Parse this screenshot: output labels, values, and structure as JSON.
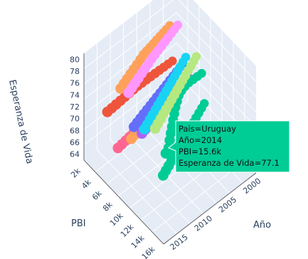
{
  "chart_data": {
    "type": "scatter3d",
    "x_axis": {
      "title": "Año",
      "ticks": [
        "2000",
        "2005",
        "2010",
        "2015"
      ],
      "range": [
        1997,
        2016
      ]
    },
    "y_axis": {
      "title": "PBI",
      "ticks": [
        "2k",
        "4k",
        "6k",
        "8k",
        "10k",
        "12k",
        "14k",
        "16k"
      ],
      "range": [
        1500,
        16500
      ]
    },
    "z_axis": {
      "title": "Esperanza de Vida",
      "ticks": [
        "64",
        "66",
        "68",
        "70",
        "72",
        "74",
        "76",
        "78",
        "80"
      ],
      "range": [
        63,
        81
      ]
    },
    "series": [
      {
        "color": "#ef553b",
        "x": [
          2000,
          2001,
          2002,
          2003,
          2004,
          2005,
          2006,
          2007,
          2008,
          2009,
          2010,
          2011,
          2012,
          2013,
          2014,
          2015
        ],
        "y": [
          3500,
          3600,
          3700,
          3800,
          3900,
          4000,
          4100,
          4200,
          4300,
          4400,
          4500,
          4600,
          4700,
          4800,
          4900,
          5000
        ],
        "z": [
          71.5,
          71.7,
          71.9,
          72.1,
          72.3,
          72.5,
          72.7,
          72.9,
          73.1,
          73.2,
          73.3,
          73.4,
          73.5,
          73.6,
          73.7,
          73.8
        ]
      },
      {
        "color": "#fe6692",
        "x": [
          2000,
          2001,
          2002,
          2003,
          2004,
          2005,
          2006,
          2007,
          2008,
          2009,
          2010,
          2011,
          2012,
          2013,
          2014,
          2015
        ],
        "y": [
          4000,
          4200,
          4400,
          4600,
          4800,
          5000,
          5200,
          5400,
          5600,
          5800,
          6000,
          6200,
          6400,
          6600,
          6800,
          7000
        ],
        "z": [
          65.5,
          65.9,
          66.3,
          66.7,
          67.0,
          67.3,
          67.6,
          67.9,
          68.2,
          68.4,
          68.6,
          68.8,
          69.0,
          69.2,
          69.4,
          69.6
        ]
      },
      {
        "color": "#ffa15a",
        "x": [
          2000,
          2001,
          2002,
          2003,
          2004,
          2005,
          2006,
          2007,
          2008,
          2009,
          2010,
          2011,
          2012,
          2013,
          2014,
          2015
        ],
        "y": [
          5000,
          5300,
          5600,
          5900,
          6200,
          6500,
          6800,
          7100,
          7400,
          7700,
          8000,
          8300,
          8600,
          8900,
          9200,
          9500
        ],
        "z": [
          69.0,
          69.3,
          69.6,
          69.9,
          70.2,
          70.5,
          70.8,
          71.1,
          71.4,
          71.7,
          72.0,
          72.3,
          72.6,
          72.9,
          73.2,
          73.5
        ]
      },
      {
        "color": "#636efa",
        "x": [
          2000,
          2001,
          2002,
          2003,
          2004,
          2005,
          2006,
          2007,
          2008,
          2009,
          2010,
          2011,
          2012,
          2013,
          2014,
          2015
        ],
        "y": [
          5500,
          5800,
          6100,
          6400,
          6700,
          7000,
          7300,
          7600,
          7900,
          8200,
          8500,
          8800,
          9100,
          9400,
          9700,
          10000
        ],
        "z": [
          73.0,
          73.2,
          73.4,
          73.6,
          73.8,
          74.0,
          74.2,
          74.4,
          74.6,
          74.8,
          75.0,
          75.2,
          75.4,
          75.6,
          75.8,
          76.0
        ]
      },
      {
        "color": "#ab63fa",
        "x": [
          2000,
          2001,
          2002,
          2003,
          2004,
          2005,
          2006,
          2007,
          2008,
          2009,
          2010,
          2011,
          2012,
          2013,
          2014,
          2015
        ],
        "y": [
          7000,
          7300,
          7600,
          7900,
          8200,
          8500,
          8800,
          9100,
          9400,
          9700,
          10000,
          10300,
          10600,
          10900,
          11200,
          11500
        ],
        "z": [
          71.8,
          72.1,
          72.4,
          72.7,
          73.0,
          73.3,
          73.6,
          73.9,
          74.2,
          74.5,
          74.8,
          75.1,
          75.4,
          75.7,
          76.0,
          76.3
        ]
      },
      {
        "color": "#19d3f3",
        "x": [
          2000,
          2001,
          2002,
          2003,
          2004,
          2005,
          2006,
          2007,
          2008,
          2009,
          2010,
          2011,
          2012,
          2013,
          2014,
          2015
        ],
        "y": [
          6000,
          6400,
          6800,
          7200,
          7600,
          8000,
          8400,
          8800,
          9200,
          9600,
          10000,
          10400,
          10800,
          11200,
          11600,
          12000
        ],
        "z": [
          74.5,
          74.7,
          74.9,
          75.1,
          75.3,
          75.5,
          75.7,
          75.9,
          76.1,
          76.3,
          76.5,
          76.7,
          76.9,
          77.1,
          77.3,
          77.5
        ]
      },
      {
        "color": "#b6e880",
        "x": [
          2000,
          2001,
          2002,
          2003,
          2004,
          2005,
          2006,
          2007,
          2008,
          2009,
          2010,
          2011,
          2012,
          2013,
          2014,
          2015
        ],
        "y": [
          8000,
          8400,
          8800,
          9200,
          9600,
          10000,
          10400,
          10800,
          11200,
          11600,
          12000,
          12400,
          12800,
          13200,
          13600,
          14000
        ],
        "z": [
          76.5,
          76.7,
          76.9,
          77.1,
          77.3,
          77.5,
          77.7,
          77.9,
          78.1,
          78.3,
          78.5,
          78.7,
          78.9,
          79.1,
          79.3,
          79.5
        ]
      },
      {
        "color": "#ffa15a",
        "x": [
          2000,
          2001,
          2002,
          2003,
          2004,
          2005,
          2006,
          2007,
          2008,
          2009,
          2010,
          2011,
          2012,
          2013,
          2014,
          2015
        ],
        "y": [
          3000,
          3300,
          3600,
          3900,
          4200,
          4500,
          4800,
          5100,
          5400,
          5700,
          6000,
          6300,
          6600,
          6900,
          7200,
          7500
        ],
        "z": [
          77.0,
          77.3,
          77.6,
          77.9,
          78.2,
          78.5,
          78.8,
          79.1,
          79.4,
          79.5,
          79.6,
          79.7,
          79.8,
          79.9,
          80.0,
          80.1
        ]
      },
      {
        "color": "#ff97ff",
        "x": [
          2000,
          2001,
          2002,
          2003,
          2004,
          2005,
          2006,
          2007,
          2008,
          2009,
          2010,
          2011,
          2012,
          2013,
          2014,
          2015
        ],
        "y": [
          4500,
          4800,
          5100,
          5400,
          5700,
          6000,
          6300,
          6600,
          6900,
          7200,
          7500,
          7800,
          8100,
          8400,
          8700,
          9000
        ],
        "z": [
          78.5,
          78.7,
          78.9,
          79.1,
          79.3,
          79.5,
          79.7,
          79.9,
          80.1,
          80.2,
          80.3,
          80.4,
          80.5,
          80.6,
          80.7,
          80.8
        ]
      },
      {
        "color": "#00cc96",
        "x": [
          2000,
          2001,
          2002,
          2003,
          2004,
          2005,
          2006,
          2007,
          2008,
          2009,
          2010,
          2011,
          2012,
          2013,
          2014,
          2015
        ],
        "y": [
          9000,
          9100,
          9200,
          9300,
          9500,
          9800,
          10200,
          10800,
          11400,
          12100,
          12800,
          13500,
          14200,
          14900,
          15600,
          16000
        ],
        "z": [
          74.6,
          74.8,
          75.0,
          75.2,
          75.4,
          75.6,
          75.8,
          76.0,
          76.2,
          76.4,
          76.6,
          76.8,
          77.0,
          77.1,
          77.1,
          77.2
        ]
      },
      {
        "color": "#00cc96",
        "x": [
          2000,
          2001,
          2002,
          2003,
          2004,
          2005,
          2006,
          2007,
          2008,
          2009,
          2010,
          2011,
          2012,
          2013,
          2014,
          2015
        ],
        "y": [
          9500,
          9900,
          10300,
          10700,
          11100,
          11500,
          11900,
          12300,
          12700,
          13100,
          13500,
          13900,
          14300,
          14700,
          15100,
          15500
        ],
        "z": [
          70.0,
          70.2,
          70.4,
          70.6,
          70.8,
          71.0,
          71.2,
          71.4,
          71.6,
          71.8,
          72.0,
          72.2,
          72.4,
          72.6,
          72.8,
          73.0
        ]
      }
    ],
    "hover": {
      "lines": [
        "Pais=Uruguay",
        "Año=2014",
        "PBI=15.6k",
        "Esperanza de Vida=77.1"
      ],
      "color": "#00cc96"
    }
  }
}
